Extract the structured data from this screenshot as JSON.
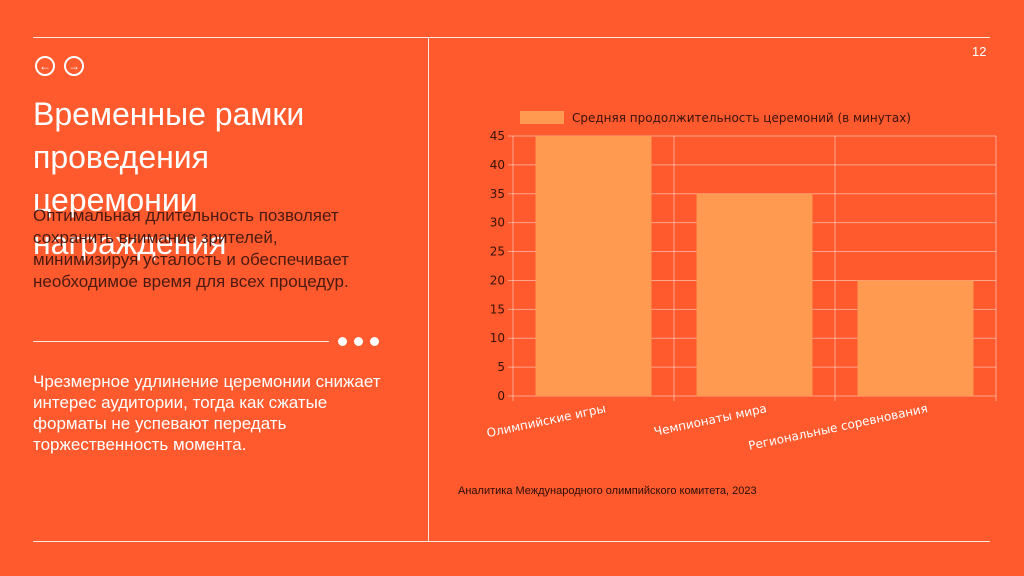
{
  "page_number": "12",
  "nav": {
    "back_icon": "arrow-left-icon",
    "forward_icon": "arrow-right-icon"
  },
  "title": "Временные рамки проведения церемонии награждения",
  "paragraph1": "Оптимальная длительность позволяет сохранить внимание зрителей, минимизируя усталость и обеспечивает необходимое время для всех процедур.",
  "paragraph2": "Чрезмерное удлинение церемонии снижает интерес аудитории, тогда как сжатые форматы не успевают передать торжественность момента.",
  "source": "Аналитика Международного олимпийского комитета, 2023",
  "colors": {
    "background": "#ff5a2e",
    "bar": "#ff9a50"
  },
  "chart_data": {
    "type": "bar",
    "categories": [
      "Олимпийские игры",
      "Чемпионаты мира",
      "Региональные соревнования"
    ],
    "series": [
      {
        "name": "Средняя продолжительность церемоний (в минутах)",
        "values": [
          45,
          35,
          20
        ]
      }
    ],
    "ylim": [
      0,
      45
    ],
    "yticks": [
      0,
      5,
      10,
      15,
      20,
      25,
      30,
      35,
      40,
      45
    ],
    "grid": true,
    "legend": "top"
  }
}
